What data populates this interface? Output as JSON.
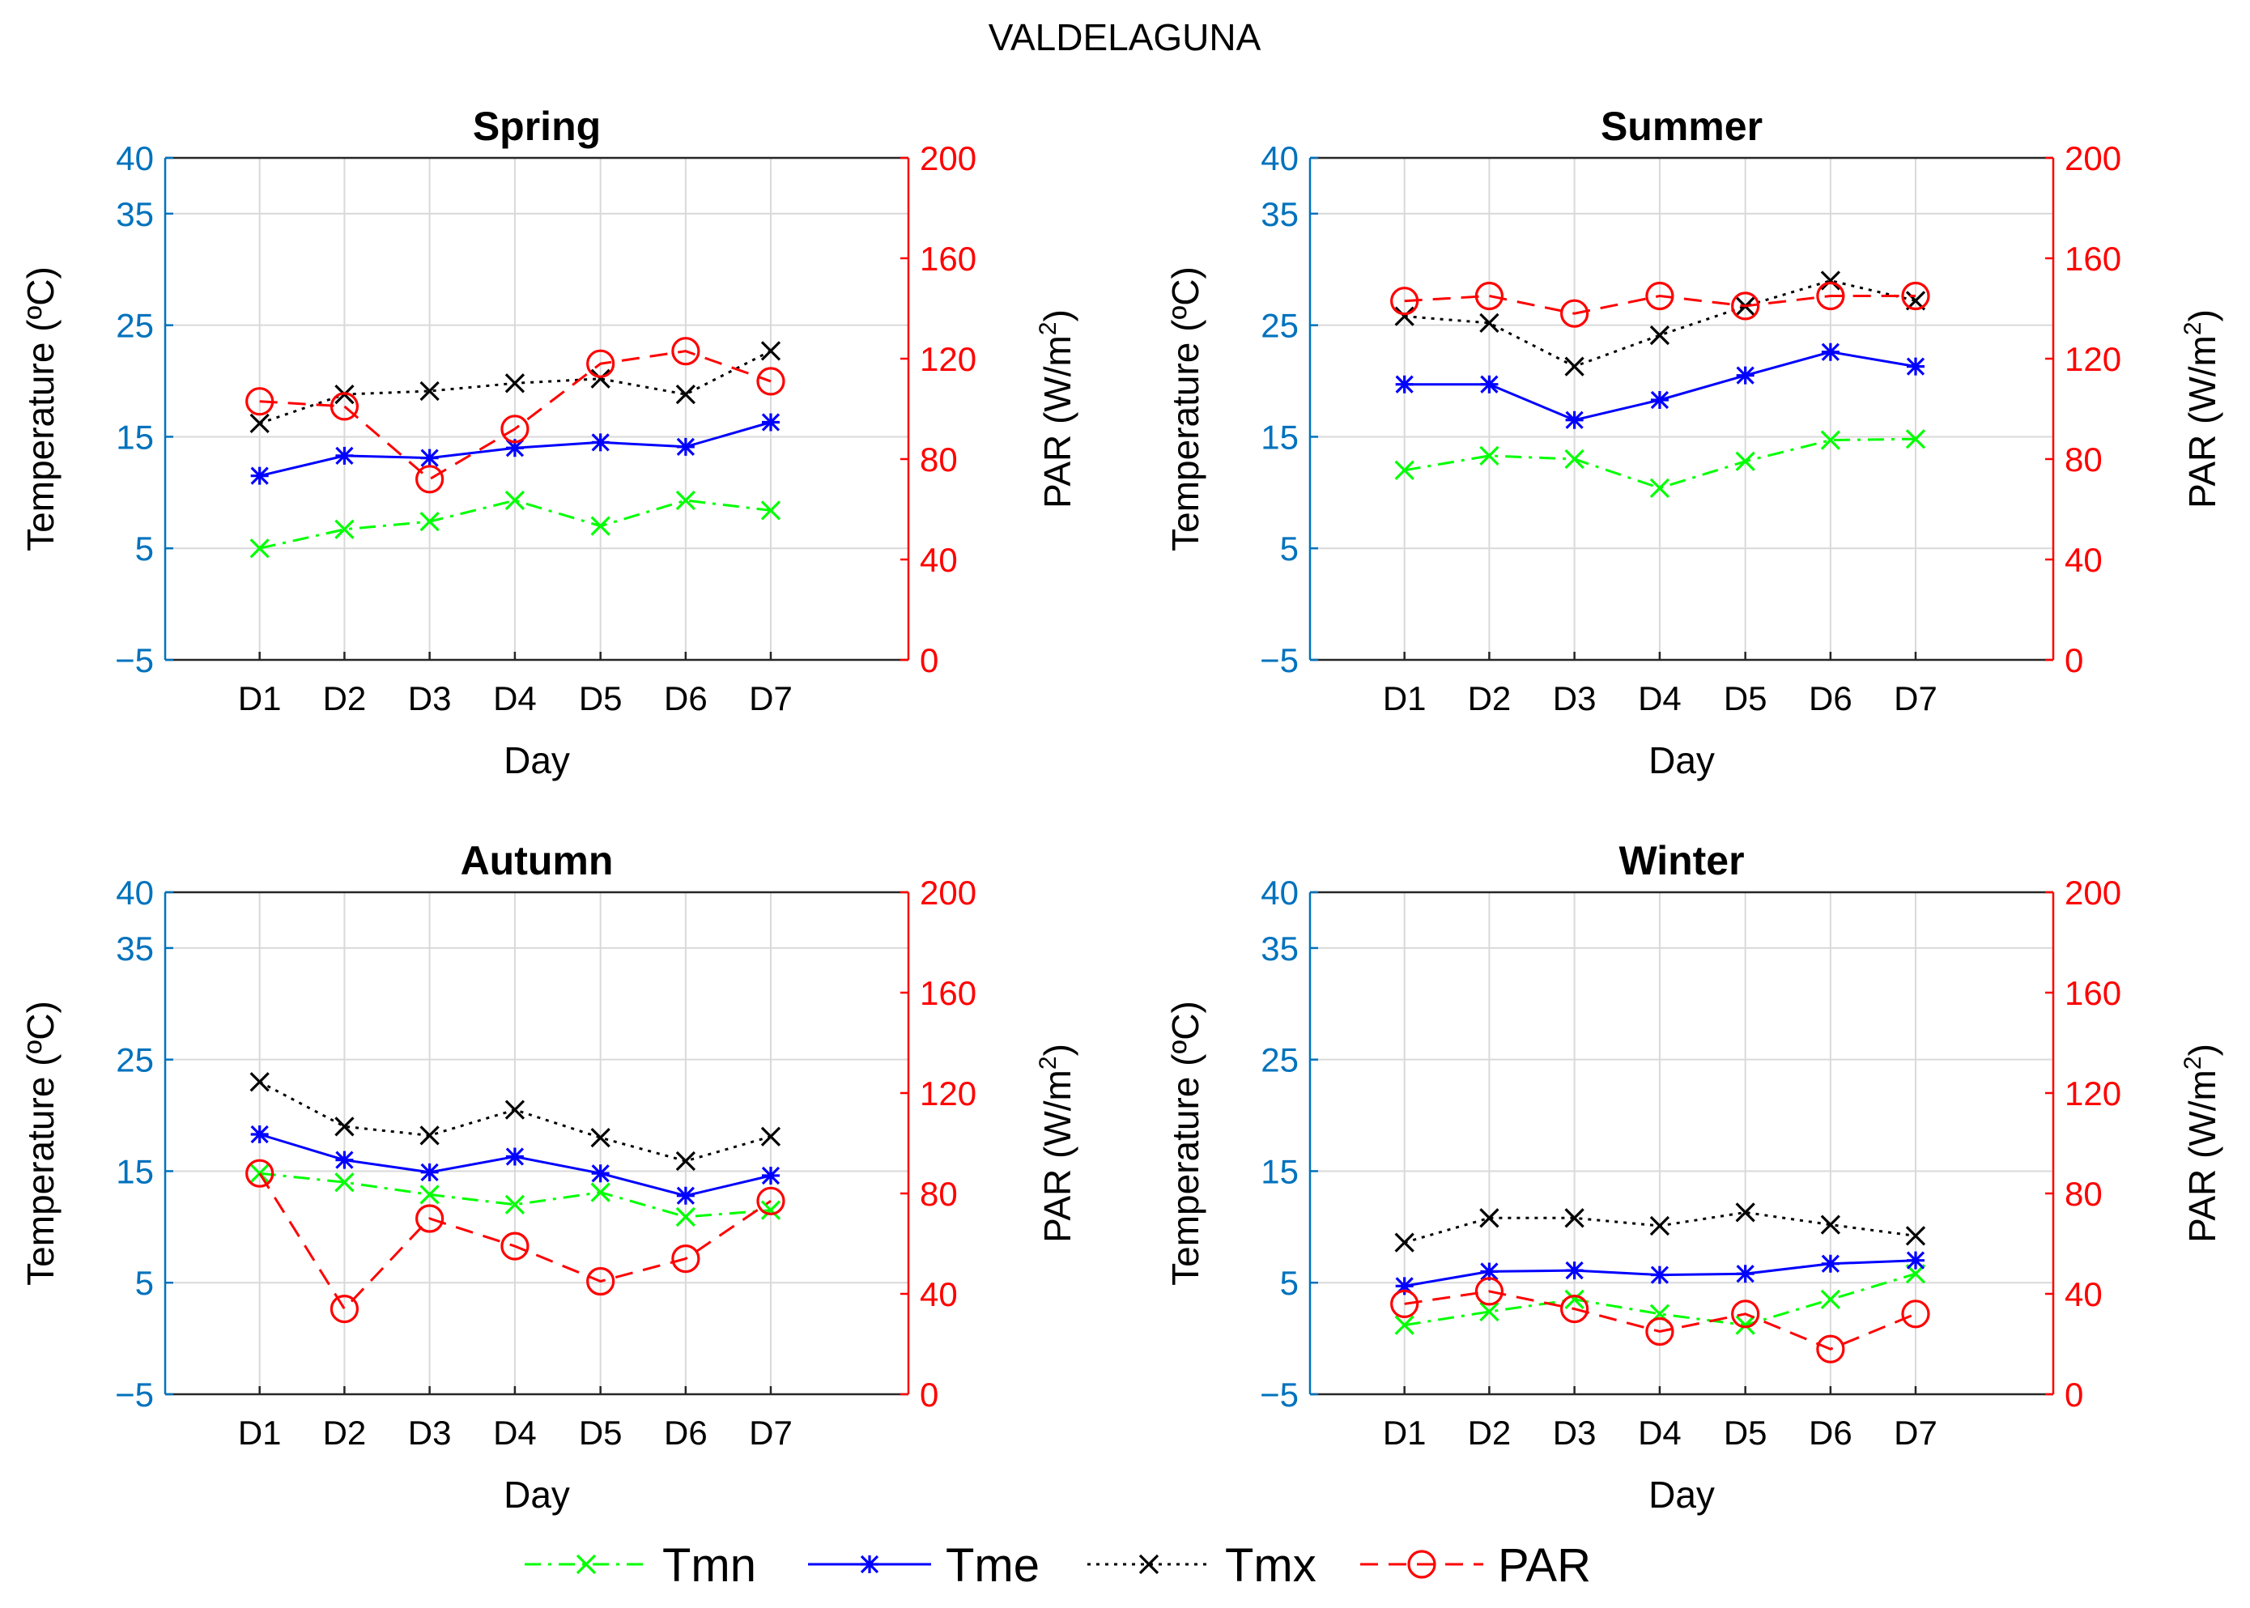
{
  "chart_data": {
    "type": "line",
    "figure_title": "VALDELAGUNA",
    "categories": [
      "D1",
      "D2",
      "D3",
      "D4",
      "D5",
      "D6",
      "D7"
    ],
    "xlabel": "Day",
    "ylabel_left": "Temperature (ºC)",
    "ylabel_right_prefix": "PAR (W/m",
    "ylabel_right_sup": "2",
    "ylabel_right_suffix": ")",
    "ylim_left": [
      -5,
      40
    ],
    "yticks_left": [
      -5,
      5,
      15,
      25,
      35,
      40
    ],
    "yticks_left_labels": [
      "−5",
      "5",
      "15",
      "25",
      "35",
      "40"
    ],
    "ylim_right": [
      0,
      200
    ],
    "yticks_right": [
      0,
      40,
      80,
      120,
      160,
      200
    ],
    "yticks_right_labels": [
      "0",
      "40",
      "80",
      "120",
      "160",
      "200"
    ],
    "colors": {
      "Tmn": "#00ff00",
      "Tme": "#0000ff",
      "Tmx": "#000000",
      "PAR": "#ff0000",
      "left_axis": "#0072bd",
      "right_axis": "#ff0000",
      "grid": "#d9d9d9"
    },
    "legend": [
      {
        "name": "Tmn",
        "color": "#00ff00",
        "dash": "dashdot",
        "marker": "x"
      },
      {
        "name": "Tme",
        "color": "#0000ff",
        "dash": "solid",
        "marker": "star"
      },
      {
        "name": "Tmx",
        "color": "#000000",
        "dash": "dotted",
        "marker": "x"
      },
      {
        "name": "PAR",
        "color": "#ff0000",
        "dash": "dashed",
        "marker": "circle"
      }
    ],
    "panels": [
      {
        "title": "Spring",
        "series": [
          {
            "name": "Tmn",
            "values": [
              5.0,
              6.7,
              7.4,
              9.3,
              7.0,
              9.3,
              8.4
            ]
          },
          {
            "name": "Tme",
            "values": [
              11.5,
              13.3,
              13.1,
              14.0,
              14.5,
              14.1,
              16.3
            ]
          },
          {
            "name": "Tmx",
            "values": [
              16.2,
              18.8,
              19.1,
              19.8,
              20.2,
              18.8,
              22.7
            ]
          },
          {
            "name": "PAR",
            "values": [
              103,
              101,
              72,
              92,
              118,
              123,
              111
            ]
          }
        ]
      },
      {
        "title": "Summer",
        "series": [
          {
            "name": "Tmn",
            "values": [
              12.0,
              13.3,
              13.0,
              10.4,
              12.8,
              14.7,
              14.8
            ]
          },
          {
            "name": "Tme",
            "values": [
              19.7,
              19.7,
              16.5,
              18.3,
              20.5,
              22.6,
              21.3
            ]
          },
          {
            "name": "Tmx",
            "values": [
              25.8,
              25.2,
              21.3,
              24.1,
              26.7,
              29.0,
              27.2
            ]
          },
          {
            "name": "PAR",
            "values": [
              143,
              145,
              138,
              145,
              141,
              145,
              145
            ]
          }
        ]
      },
      {
        "title": "Autumn",
        "series": [
          {
            "name": "Tmn",
            "values": [
              14.8,
              14.0,
              12.9,
              12.0,
              13.1,
              10.9,
              11.5
            ]
          },
          {
            "name": "Tme",
            "values": [
              18.3,
              16.0,
              14.9,
              16.3,
              14.8,
              12.8,
              14.6
            ]
          },
          {
            "name": "Tmx",
            "values": [
              23.0,
              19.0,
              18.2,
              20.5,
              18.0,
              15.9,
              18.1
            ]
          },
          {
            "name": "PAR",
            "values": [
              88,
              34,
              70,
              59,
              45,
              54,
              77
            ]
          }
        ]
      },
      {
        "title": "Winter",
        "series": [
          {
            "name": "Tmn",
            "values": [
              1.2,
              2.4,
              3.5,
              2.2,
              1.2,
              3.5,
              5.8
            ]
          },
          {
            "name": "Tme",
            "values": [
              4.7,
              6.0,
              6.1,
              5.7,
              5.8,
              6.7,
              7.0
            ]
          },
          {
            "name": "Tmx",
            "values": [
              8.6,
              10.8,
              10.8,
              10.1,
              11.3,
              10.2,
              9.2
            ]
          },
          {
            "name": "PAR",
            "values": [
              36,
              41,
              34,
              25,
              32,
              18,
              32
            ]
          }
        ]
      }
    ]
  }
}
